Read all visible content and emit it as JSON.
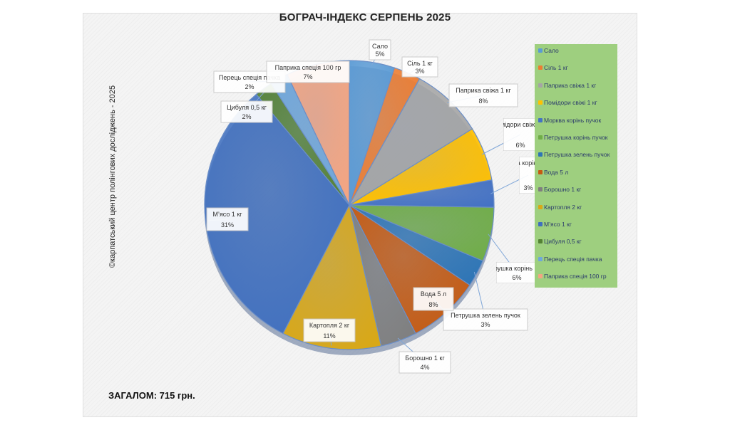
{
  "page": {
    "title": "БОГРАЧ-ІНДЕКС СЕРПЕНЬ 2025",
    "copyright": "©карпатський центр полінгових досліджень - 2025",
    "total": "ЗАГАЛОМ: 715 грн."
  },
  "chart_data": {
    "type": "pie",
    "title": "БОГРАЧ-ІНДЕКС СЕРПЕНЬ 2025",
    "legend_position": "right",
    "slices": [
      {
        "name": "Сало",
        "label": "Сало",
        "value": 5,
        "pct": "5%",
        "color": "#5b9bd5"
      },
      {
        "name": "Сіль 1 кг",
        "label": "Сіль 1 кг",
        "value": 3,
        "pct": "3%",
        "color": "#ed7d31"
      },
      {
        "name": "Паприка свіжа 1 кг",
        "label": "Паприка свіжа 1 кг",
        "value": 8,
        "pct": "8%",
        "color": "#a5a5a5"
      },
      {
        "name": "Помідори свіжі 1 кг",
        "label": "Помідори свіжі 1 кг",
        "value": 6,
        "pct": "6%",
        "color": "#ffc000"
      },
      {
        "name": "Морква корінь пучок",
        "label": "Морква корінь пучок",
        "value": 3,
        "pct": "3%",
        "color": "#4472c4"
      },
      {
        "name": "Петрушка корінь пучок",
        "label": "Петрушка корінь пучок",
        "value": 6,
        "pct": "6%",
        "color": "#70ad47"
      },
      {
        "name": "Петрушка зелень пучок",
        "label": "Петрушка зелень пучок",
        "value": 3,
        "pct": "3%",
        "color": "#2e75b6"
      },
      {
        "name": "Вода 5 л",
        "label": "Вода 5 л",
        "value": 8,
        "pct": "8%",
        "color": "#c55a11"
      },
      {
        "name": "Борошно 1 кг",
        "label": "Борошно 1 кг",
        "value": 4,
        "pct": "4%",
        "color": "#7f7f7f"
      },
      {
        "name": "Картопля 2 кг",
        "label": "Картопля 2 кг",
        "value": 11,
        "pct": "11%",
        "color": "#d9a816"
      },
      {
        "name": "М’ясо 1 кг",
        "label": "М’ясо 1 кг",
        "value": 31,
        "pct": "31%",
        "color": "#3f6fbf"
      },
      {
        "name": "Цибуля 0,5 кг",
        "label": "Цибуля 0,5 кг",
        "value": 2,
        "pct": "2%",
        "color": "#548235"
      },
      {
        "name": "Перець спеція пачка",
        "label": "Перець спеція пачка",
        "value": 2,
        "pct": "2%",
        "color": "#6fa8dc"
      },
      {
        "name": "Паприка спеція 100 гр",
        "label": "Паприка спеція 100 гр",
        "value": 7,
        "pct": "7%",
        "color": "#f4a582"
      }
    ],
    "legend": [
      "Сало",
      "Сіль 1 кг",
      "Паприка свіжа 1 кг",
      "Помідори свіжі 1 кг",
      "Морква корінь пучок",
      "Петрушка корінь пучок",
      "Петрушка зелень пучок",
      "Вода 5 л",
      "Борошно 1 кг",
      "Картопля 2 кг",
      "М’ясо 1 кг",
      "Цибуля 0,5 кг",
      "Перець спеція пачка",
      "Паприка спеція 100 гр"
    ]
  }
}
